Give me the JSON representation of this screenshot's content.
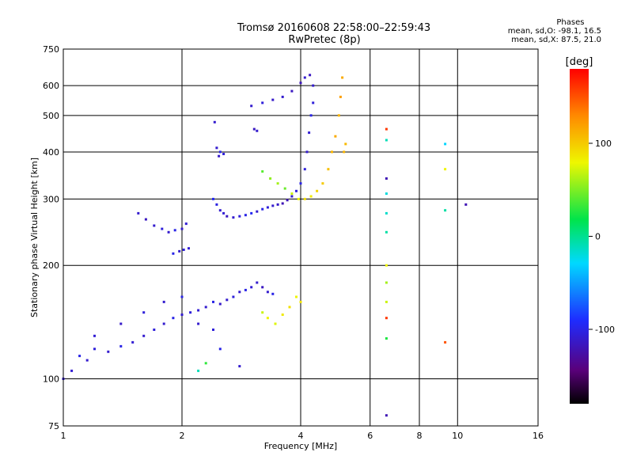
{
  "header": {
    "title_line1": "Tromsø 20160608 22:58:00–22:59:43",
    "title_line2": "RwPretec (8p)"
  },
  "stats": {
    "label": "Phases",
    "line_o": "mean, sd,O: -98.1, 16.5",
    "line_x": "mean, sd,X:  87.5, 21.0"
  },
  "chart_data": {
    "type": "scatter",
    "xlabel": "Frequency [MHz]",
    "ylabel": "Stationary phase Virtual Height [km]",
    "x_scale": "log",
    "y_scale": "log",
    "xlim": [
      1,
      16
    ],
    "ylim": [
      75,
      750
    ],
    "x_ticks": [
      1,
      2,
      4,
      6,
      8,
      10,
      16
    ],
    "x_ticklabels": [
      "1",
      "2",
      "4",
      "6",
      "8",
      "10",
      "16"
    ],
    "y_ticks": [
      75,
      100,
      200,
      300,
      400,
      500,
      600,
      750
    ],
    "y_ticklabels": [
      "75",
      "100",
      "200",
      "300",
      "400",
      "500",
      "600",
      "750"
    ],
    "grid": true,
    "colorbar": {
      "label": "[deg]",
      "min": -180,
      "max": 180,
      "ticks": [
        -100,
        0,
        100
      ],
      "ticklabels": [
        "-100",
        "0",
        "100"
      ],
      "colormap": "rainbow"
    },
    "series": [
      {
        "points": [
          [
            1.55,
            275,
            -110
          ],
          [
            1.62,
            265,
            -115
          ],
          [
            1.7,
            255,
            -110
          ],
          [
            1.78,
            250,
            -105
          ],
          [
            1.85,
            245,
            -110
          ],
          [
            1.92,
            248,
            -100
          ],
          [
            2.0,
            250,
            -112
          ],
          [
            2.05,
            258,
            -108
          ],
          [
            1.9,
            215,
            -100
          ],
          [
            1.97,
            218,
            -110
          ],
          [
            2.02,
            220,
            -105
          ],
          [
            2.08,
            222,
            -108
          ],
          [
            2.45,
            410,
            -110
          ],
          [
            2.5,
            400,
            -100
          ],
          [
            2.55,
            395,
            -105
          ],
          [
            2.48,
            390,
            -112
          ],
          [
            2.42,
            480,
            -110
          ],
          [
            2.4,
            300,
            -95
          ],
          [
            2.45,
            290,
            -102
          ],
          [
            2.5,
            280,
            -110
          ],
          [
            2.55,
            275,
            -108
          ],
          [
            2.6,
            270,
            -115
          ],
          [
            2.7,
            268,
            -110
          ],
          [
            2.8,
            270,
            -105
          ],
          [
            2.9,
            272,
            -100
          ],
          [
            3.0,
            275,
            -95
          ],
          [
            3.1,
            278,
            -110
          ],
          [
            3.2,
            282,
            -100
          ],
          [
            3.3,
            285,
            -105
          ],
          [
            3.4,
            288,
            -110
          ],
          [
            3.5,
            290,
            -112
          ],
          [
            3.6,
            292,
            -120
          ],
          [
            3.7,
            298,
            -118
          ],
          [
            3.8,
            305,
            -110
          ],
          [
            3.9,
            315,
            -105
          ],
          [
            4.0,
            330,
            -100
          ],
          [
            4.1,
            360,
            -105
          ],
          [
            4.15,
            400,
            -110
          ],
          [
            4.2,
            450,
            -108
          ],
          [
            4.25,
            500,
            -100
          ],
          [
            4.3,
            540,
            -105
          ],
          [
            4.3,
            600,
            -110
          ],
          [
            4.22,
            640,
            -115
          ],
          [
            3.2,
            355,
            40
          ],
          [
            3.35,
            340,
            55
          ],
          [
            3.5,
            330,
            60
          ],
          [
            3.65,
            320,
            45
          ],
          [
            3.8,
            310,
            70
          ],
          [
            3.95,
            300,
            80
          ],
          [
            4.1,
            300,
            90
          ],
          [
            4.25,
            305,
            85
          ],
          [
            4.4,
            315,
            95
          ],
          [
            4.55,
            330,
            100
          ],
          [
            4.7,
            360,
            105
          ],
          [
            4.8,
            400,
            110
          ],
          [
            4.9,
            440,
            115
          ],
          [
            5.0,
            500,
            110
          ],
          [
            5.05,
            560,
            120
          ],
          [
            5.1,
            630,
            115
          ],
          [
            5.15,
            400,
            110
          ],
          [
            5.2,
            420,
            108
          ],
          [
            3.0,
            530,
            -110
          ],
          [
            3.2,
            540,
            -105
          ],
          [
            3.4,
            550,
            -112
          ],
          [
            3.6,
            560,
            -110
          ],
          [
            3.8,
            580,
            -115
          ],
          [
            4.0,
            610,
            -118
          ],
          [
            4.1,
            630,
            -110
          ],
          [
            3.05,
            460,
            -115
          ],
          [
            3.1,
            455,
            -110
          ],
          [
            1.0,
            100,
            -110
          ],
          [
            1.05,
            105,
            -108
          ],
          [
            1.1,
            115,
            -100
          ],
          [
            1.15,
            112,
            -110
          ],
          [
            1.2,
            120,
            -105
          ],
          [
            1.3,
            118,
            -110
          ],
          [
            1.4,
            122,
            -100
          ],
          [
            1.5,
            125,
            -108
          ],
          [
            1.6,
            130,
            -110
          ],
          [
            1.7,
            135,
            -105
          ],
          [
            1.8,
            140,
            -110
          ],
          [
            1.9,
            145,
            -100
          ],
          [
            2.0,
            148,
            -110
          ],
          [
            2.1,
            150,
            -105
          ],
          [
            2.2,
            152,
            -108
          ],
          [
            2.3,
            155,
            -110
          ],
          [
            2.4,
            160,
            -100
          ],
          [
            2.5,
            158,
            -112
          ],
          [
            2.6,
            162,
            -110
          ],
          [
            2.7,
            165,
            -105
          ],
          [
            2.8,
            170,
            -110
          ],
          [
            2.9,
            172,
            -100
          ],
          [
            3.0,
            175,
            -108
          ],
          [
            3.1,
            180,
            -110
          ],
          [
            3.2,
            175,
            -115
          ],
          [
            3.3,
            170,
            -110
          ],
          [
            3.4,
            168,
            -100
          ],
          [
            1.2,
            130,
            -108
          ],
          [
            1.4,
            140,
            -112
          ],
          [
            1.6,
            150,
            -105
          ],
          [
            1.8,
            160,
            -110
          ],
          [
            2.0,
            165,
            -100
          ],
          [
            2.2,
            140,
            -110
          ],
          [
            2.4,
            135,
            -105
          ],
          [
            3.2,
            150,
            70
          ],
          [
            3.3,
            145,
            80
          ],
          [
            3.45,
            140,
            75
          ],
          [
            3.6,
            148,
            85
          ],
          [
            3.75,
            155,
            90
          ],
          [
            3.9,
            165,
            80
          ],
          [
            4.0,
            160,
            88
          ],
          [
            2.3,
            110,
            30
          ],
          [
            2.2,
            105,
            -10
          ],
          [
            2.8,
            108,
            -110
          ],
          [
            2.5,
            120,
            -100
          ],
          [
            6.6,
            460,
            160
          ],
          [
            6.6,
            430,
            -10
          ],
          [
            6.6,
            340,
            -120
          ],
          [
            6.6,
            310,
            -20
          ],
          [
            6.6,
            275,
            -15
          ],
          [
            6.6,
            245,
            -5
          ],
          [
            6.6,
            200,
            80
          ],
          [
            6.6,
            180,
            60
          ],
          [
            6.6,
            160,
            70
          ],
          [
            6.6,
            145,
            160
          ],
          [
            6.6,
            128,
            25
          ],
          [
            6.6,
            80,
            -120
          ],
          [
            9.3,
            280,
            -5
          ],
          [
            9.3,
            420,
            -30
          ],
          [
            9.3,
            360,
            80
          ],
          [
            9.3,
            125,
            150
          ],
          [
            10.5,
            290,
            -120
          ]
        ]
      }
    ]
  }
}
